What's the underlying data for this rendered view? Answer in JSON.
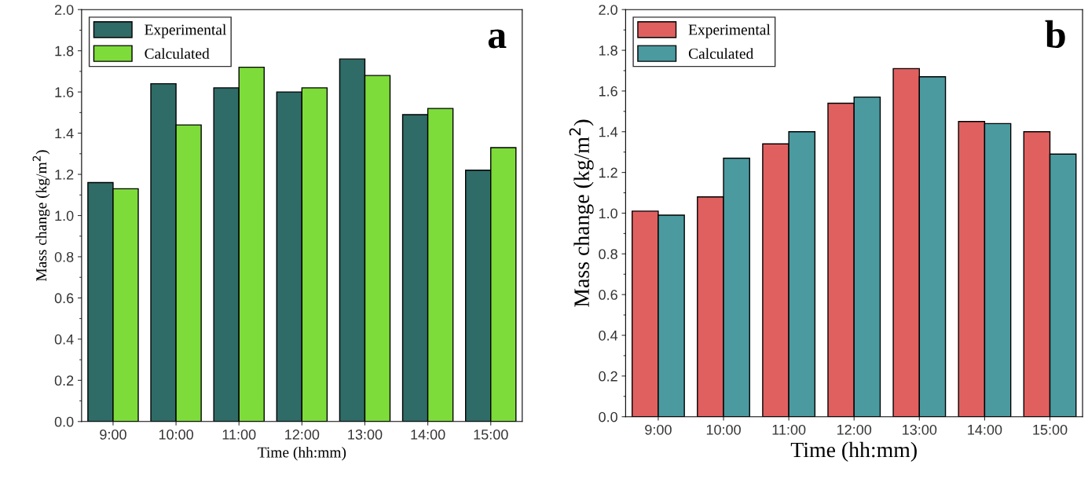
{
  "chart_data": [
    {
      "type": "bar",
      "xlabel": "Time (hh:mm)",
      "ylabel": "Mass change (kg/m$^{2}$)",
      "categories": [
        "9:00",
        "10:00",
        "11:00",
        "12:00",
        "13:00",
        "14:00",
        "15:00"
      ],
      "series": [
        {
          "name": "Experimental",
          "color": "#2f6b67",
          "values": [
            1.16,
            1.64,
            1.62,
            1.6,
            1.76,
            1.49,
            1.22
          ]
        },
        {
          "name": "Calculated",
          "color": "#7ddc3a",
          "values": [
            1.13,
            1.44,
            1.72,
            1.62,
            1.68,
            1.52,
            1.33
          ]
        }
      ],
      "ylim": [
        0,
        2.0
      ],
      "yticks": [
        {
          "value": 0,
          "label": "0.0"
        },
        0.2,
        0.4,
        0.6,
        0.8,
        {
          "value": 1,
          "label": "1.0"
        },
        1.2,
        1.4,
        1.6,
        1.8,
        {
          "value": 2,
          "label": "2.0"
        }
      ],
      "legend": "top left",
      "grid": false,
      "annotations": [
        "a"
      ]
    },
    {
      "type": "bar",
      "xlabel": "Time (hh:mm)",
      "ylabel": "Mass change (kg/m$^{2}$)",
      "categories": [
        "9:00",
        "10:00",
        "11:00",
        "12:00",
        "13:00",
        "14:00",
        "15:00"
      ],
      "series": [
        {
          "name": "Experimental",
          "color": "#e06060",
          "values": [
            1.01,
            1.08,
            1.34,
            1.54,
            1.71,
            1.45,
            1.4
          ]
        },
        {
          "name": "Calculated",
          "color": "#4a9aa0",
          "values": [
            0.99,
            1.27,
            1.4,
            1.57,
            1.67,
            1.44,
            1.29
          ]
        }
      ],
      "ylim": [
        0,
        2.0
      ],
      "yticks": [
        {
          "value": 0,
          "label": "0.0"
        },
        0.2,
        0.4,
        0.6,
        0.8,
        {
          "value": 1,
          "label": "1.0"
        },
        1.2,
        1.4,
        1.6,
        1.8,
        {
          "value": 2,
          "label": "2.0"
        }
      ],
      "legend": "top left",
      "grid": false,
      "annotations": [
        "b"
      ]
    }
  ]
}
